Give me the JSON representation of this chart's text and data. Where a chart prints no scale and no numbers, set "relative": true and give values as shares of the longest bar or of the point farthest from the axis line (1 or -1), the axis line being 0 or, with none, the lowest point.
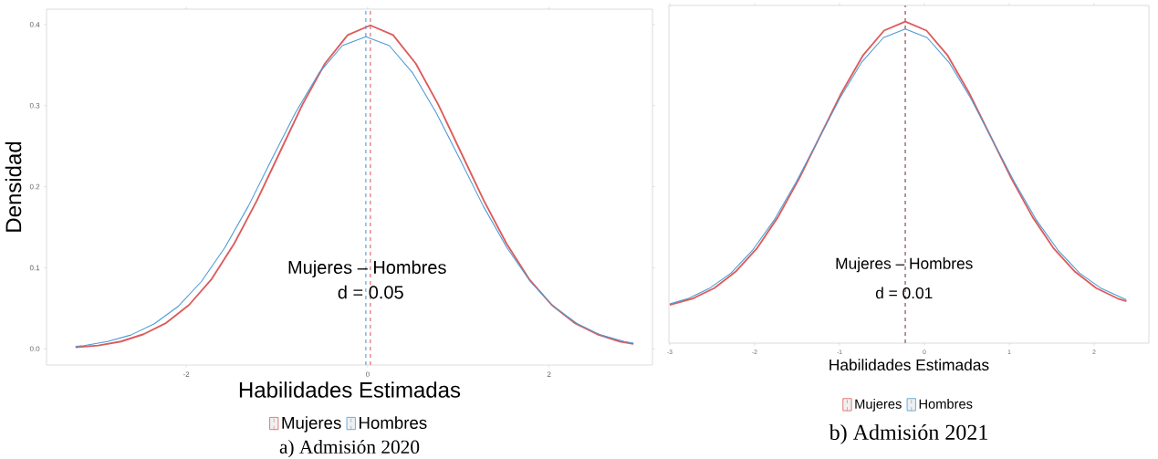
{
  "chart_data": [
    {
      "type": "line",
      "xlabel": "Habilidades Estimadas",
      "ylabel": "Densidad",
      "xlim": [
        -3.54,
        3.14
      ],
      "ylim": [
        -0.02,
        0.419
      ],
      "xticks": [
        -2,
        0,
        2
      ],
      "yticks": [
        {
          "value": 0,
          "label": "0.0"
        },
        0.1,
        0.2,
        0.3,
        0.4
      ],
      "legend": "bottom",
      "series": [
        {
          "name": "Mujeres",
          "color": "#de5b5b",
          "x": [
            -3.22,
            -2.97,
            -2.72,
            -2.47,
            -2.22,
            -1.97,
            -1.72,
            -1.47,
            -1.22,
            -0.97,
            -0.72,
            -0.47,
            -0.22,
            0.03,
            0.28,
            0.53,
            0.78,
            1.03,
            1.28,
            1.53,
            1.78,
            2.03,
            2.28,
            2.53,
            2.78,
            2.93
          ],
          "values": [
            0.002,
            0.004,
            0.009,
            0.018,
            0.032,
            0.054,
            0.086,
            0.13,
            0.183,
            0.242,
            0.301,
            0.352,
            0.387,
            0.399,
            0.387,
            0.352,
            0.301,
            0.242,
            0.183,
            0.13,
            0.086,
            0.054,
            0.032,
            0.018,
            0.009,
            0.006
          ]
        },
        {
          "name": "Hombres",
          "color": "#4a9ad6",
          "x": [
            -3.22,
            -3.128,
            -2.869,
            -2.61,
            -2.351,
            -2.092,
            -1.833,
            -1.574,
            -1.315,
            -1.056,
            -0.797,
            -0.538,
            -0.279,
            -0.02,
            0.239,
            0.498,
            0.757,
            1.016,
            1.275,
            1.534,
            1.793,
            2.052,
            2.311,
            2.57,
            2.829,
            2.93
          ],
          "values": [
            0.003,
            0.004,
            0.009,
            0.017,
            0.031,
            0.052,
            0.083,
            0.125,
            0.176,
            0.234,
            0.291,
            0.34,
            0.374,
            0.385,
            0.374,
            0.34,
            0.291,
            0.234,
            0.176,
            0.125,
            0.083,
            0.052,
            0.031,
            0.017,
            0.009,
            0.007
          ]
        }
      ],
      "ref_lines": [
        {
          "axis": "x",
          "value": 0.03,
          "color": "#de5b5b",
          "line_style": "dashed"
        },
        {
          "axis": "x",
          "value": -0.02,
          "color": "#4a9ad6",
          "line_style": "dashed"
        }
      ],
      "annotations": [
        "Mujeres – Hombres",
        "d = 0.05",
        "a) Admisión 2020"
      ]
    },
    {
      "type": "line",
      "xlabel": "Habilidades Estimadas",
      "relative": true,
      "tick_labels": "x",
      "xlim": [
        -3.01,
        2.645
      ],
      "xticks": [
        -3,
        -2,
        -1,
        0,
        1,
        2
      ],
      "legend": "bottom",
      "series": [
        {
          "name": "Mujeres",
          "color": "#de5b5b",
          "x": [
            -3.0,
            -2.725,
            -2.475,
            -2.225,
            -1.975,
            -1.725,
            -1.475,
            -1.225,
            -0.975,
            -0.725,
            -0.475,
            -0.225,
            0.025,
            0.275,
            0.525,
            0.775,
            1.025,
            1.275,
            1.525,
            1.775,
            2.025,
            2.275,
            2.38
          ],
          "values": [
            0.119,
            0.139,
            0.171,
            0.222,
            0.294,
            0.392,
            0.512,
            0.646,
            0.779,
            0.894,
            0.972,
            1.0,
            0.972,
            0.894,
            0.779,
            0.646,
            0.512,
            0.392,
            0.294,
            0.222,
            0.171,
            0.139,
            0.13
          ]
        },
        {
          "name": "Hombres",
          "color": "#4a9ad6",
          "x": [
            -3.0,
            -2.79,
            -2.534,
            -2.277,
            -2.021,
            -1.764,
            -1.508,
            -1.251,
            -0.995,
            -0.738,
            -0.482,
            -0.225,
            0.032,
            0.288,
            0.545,
            0.801,
            1.058,
            1.314,
            1.571,
            1.827,
            2.084,
            2.38
          ],
          "values": [
            0.122,
            0.138,
            0.17,
            0.218,
            0.29,
            0.385,
            0.502,
            0.632,
            0.762,
            0.874,
            0.95,
            0.977,
            0.95,
            0.874,
            0.762,
            0.632,
            0.502,
            0.385,
            0.29,
            0.218,
            0.17,
            0.135
          ]
        }
      ],
      "ref_lines": [
        {
          "axis": "x",
          "value": -0.225,
          "color": "#4a9ad6",
          "line_style": "dashed"
        },
        {
          "axis": "x",
          "value": -0.225,
          "color": "#de5b5b",
          "line_style": "dashed"
        }
      ],
      "annotations": [
        "Mujeres – Hombres",
        "d = 0.01",
        "b) Admisión 2021"
      ]
    }
  ]
}
